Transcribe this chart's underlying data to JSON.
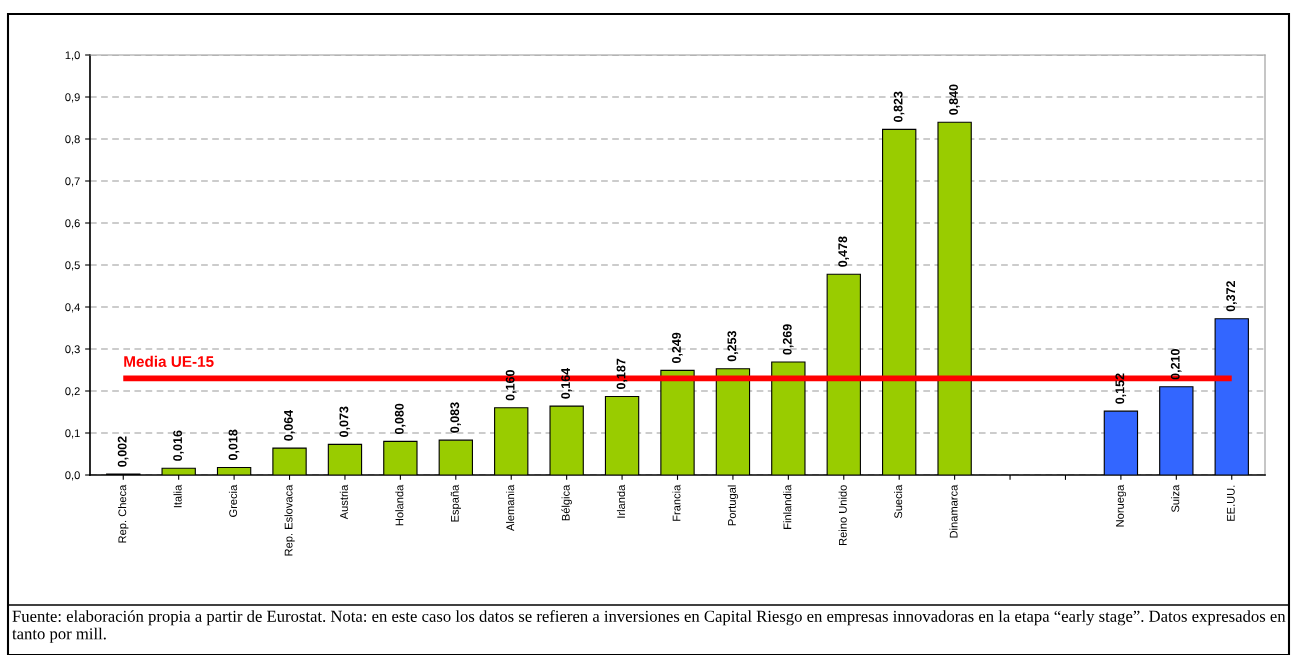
{
  "chart_data": {
    "type": "bar",
    "categories": [
      "Rep. Checa",
      "Italia",
      "Grecia",
      "Rep. Eslovaca",
      "Austria",
      "Holanda",
      "España",
      "Alemania",
      "Bélgica",
      "Irlanda",
      "Francia",
      "Portugal",
      "Finlandia",
      "Reino Unido",
      "Suecia",
      "Dinamarca",
      null,
      null,
      "Noruega",
      "Suiza",
      "EE.UU."
    ],
    "values": [
      0.002,
      0.016,
      0.018,
      0.064,
      0.073,
      0.08,
      0.083,
      0.16,
      0.164,
      0.187,
      0.249,
      0.253,
      0.269,
      0.478,
      0.823,
      0.84,
      null,
      null,
      0.152,
      0.21,
      0.372
    ],
    "colors": [
      "#99cc00",
      "#99cc00",
      "#99cc00",
      "#99cc00",
      "#99cc00",
      "#99cc00",
      "#99cc00",
      "#99cc00",
      "#99cc00",
      "#99cc00",
      "#99cc00",
      "#99cc00",
      "#99cc00",
      "#99cc00",
      "#99cc00",
      "#99cc00",
      null,
      null,
      "#3366ff",
      "#3366ff",
      "#3366ff"
    ],
    "value_labels": [
      "0,002",
      "0,016",
      "0,018",
      "0,064",
      "0,073",
      "0,080",
      "0,083",
      "0,160",
      "0,164",
      "0,187",
      "0,249",
      "0,253",
      "0,269",
      "0,478",
      "0,823",
      "0,840",
      null,
      null,
      "0,152",
      "0,210",
      "0,372"
    ],
    "ylim": [
      0,
      1.0
    ],
    "yticks": [
      {
        "value": 0,
        "label": "0,0"
      },
      {
        "value": 0.1,
        "label": "0,1"
      },
      {
        "value": 0.2,
        "label": "0,2"
      },
      {
        "value": 0.3,
        "label": "0,3"
      },
      {
        "value": 0.4,
        "label": "0,4"
      },
      {
        "value": 0.5,
        "label": "0,5"
      },
      {
        "value": 0.6,
        "label": "0,6"
      },
      {
        "value": 0.7,
        "label": "0,7"
      },
      {
        "value": 0.8,
        "label": "0,8"
      },
      {
        "value": 0.9,
        "label": "0,9"
      },
      {
        "value": 1.0,
        "label": "1,0"
      }
    ],
    "grid": "y",
    "ref_lines": [
      {
        "axis": "y",
        "value": 0.23,
        "label": "Media UE-15",
        "color": "#ff0000"
      }
    ],
    "annotations": [
      "Fuente: elaboración propia a partir de Eurostat. Nota: en este caso los datos se refieren a inversiones en Capital Riesgo en empresas innovadoras en la etapa “early stage”. Datos expresados en tanto por mill."
    ]
  }
}
